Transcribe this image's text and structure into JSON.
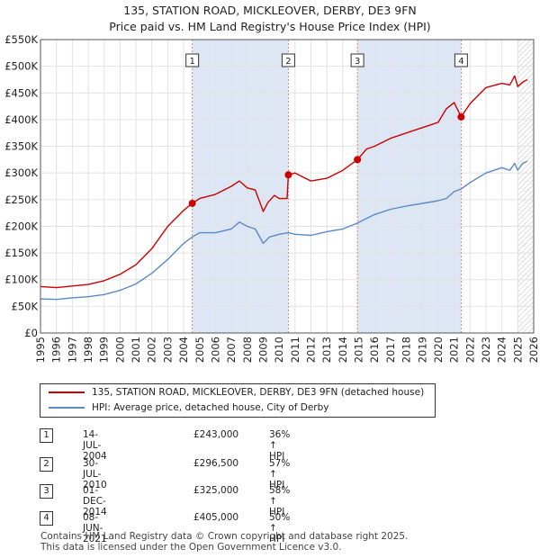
{
  "title_line1": "135, STATION ROAD, MICKLEOVER, DERBY, DE3 9FN",
  "title_line2": "Price paid vs. HM Land Registry's House Price Index (HPI)",
  "colors": {
    "property": "#cc0000",
    "hpi": "#5a8ac6",
    "shade": "#dde6f4",
    "marker_line": "#e58080"
  },
  "chart_data": {
    "type": "line",
    "xlim": [
      1995,
      2026
    ],
    "ylim": [
      0,
      550000
    ],
    "y_ticks": [
      0,
      50000,
      100000,
      150000,
      200000,
      250000,
      300000,
      350000,
      400000,
      450000,
      500000,
      550000
    ],
    "y_tick_labels": [
      "£0",
      "£50K",
      "£100K",
      "£150K",
      "£200K",
      "£250K",
      "£300K",
      "£350K",
      "£400K",
      "£450K",
      "£500K",
      "£550K"
    ],
    "x_ticks": [
      1995,
      1996,
      1997,
      1998,
      1999,
      2000,
      2001,
      2002,
      2003,
      2004,
      2005,
      2006,
      2007,
      2008,
      2009,
      2010,
      2011,
      2012,
      2013,
      2014,
      2015,
      2016,
      2017,
      2018,
      2019,
      2020,
      2021,
      2022,
      2023,
      2024,
      2025,
      2026
    ],
    "shaded_ranges": [
      [
        2004.54,
        2010.58
      ],
      [
        2014.92,
        2021.44
      ]
    ],
    "hatched_from": 2025.0,
    "series": [
      {
        "name": "135, STATION ROAD, MICKLEOVER, DERBY, DE3 9FN (detached house)",
        "color": "#cc0000",
        "x": [
          1995.0,
          1996.0,
          1997.0,
          1998.0,
          1999.0,
          2000.0,
          2001.0,
          2002.0,
          2003.0,
          2004.0,
          2004.54,
          2005.0,
          2006.0,
          2007.0,
          2007.5,
          2008.0,
          2008.5,
          2009.0,
          2009.3,
          2009.7,
          2010.0,
          2010.5,
          2010.58,
          2011.0,
          2012.0,
          2013.0,
          2014.0,
          2014.92,
          2015.5,
          2016.0,
          2017.0,
          2018.0,
          2019.0,
          2020.0,
          2020.5,
          2021.0,
          2021.44,
          2022.0,
          2023.0,
          2024.0,
          2024.5,
          2024.8,
          2025.0,
          2025.3,
          2025.6
        ],
        "y": [
          87000,
          85000,
          88000,
          91000,
          98000,
          110000,
          128000,
          158000,
          200000,
          230000,
          243000,
          252000,
          260000,
          275000,
          285000,
          272000,
          268000,
          228000,
          245000,
          258000,
          252000,
          252000,
          296500,
          300000,
          285000,
          290000,
          305000,
          325000,
          345000,
          350000,
          365000,
          375000,
          385000,
          395000,
          420000,
          432000,
          405000,
          430000,
          460000,
          468000,
          465000,
          482000,
          462000,
          470000,
          475000
        ]
      },
      {
        "name": "HPI: Average price, detached house, City of Derby",
        "color": "#5a8ac6",
        "x": [
          1995.0,
          1996.0,
          1997.0,
          1998.0,
          1999.0,
          2000.0,
          2001.0,
          2002.0,
          2003.0,
          2004.0,
          2004.54,
          2005.0,
          2006.0,
          2007.0,
          2007.5,
          2008.0,
          2008.5,
          2009.0,
          2009.4,
          2010.0,
          2010.58,
          2011.0,
          2012.0,
          2013.0,
          2014.0,
          2014.92,
          2015.5,
          2016.0,
          2017.0,
          2018.0,
          2019.0,
          2020.0,
          2020.5,
          2021.0,
          2021.44,
          2022.0,
          2023.0,
          2024.0,
          2024.5,
          2024.8,
          2025.0,
          2025.3,
          2025.6
        ],
        "y": [
          64000,
          63000,
          66000,
          68000,
          72000,
          80000,
          92000,
          112000,
          138000,
          168000,
          180000,
          188000,
          188000,
          195000,
          208000,
          200000,
          195000,
          168000,
          180000,
          185000,
          188000,
          185000,
          183000,
          190000,
          195000,
          206000,
          215000,
          222000,
          232000,
          238000,
          243000,
          248000,
          252000,
          265000,
          270000,
          282000,
          300000,
          310000,
          305000,
          318000,
          305000,
          318000,
          322000
        ]
      }
    ],
    "sale_markers": [
      {
        "label": "1",
        "x": 2004.54,
        "y": 243000
      },
      {
        "label": "2",
        "x": 2010.58,
        "y": 296500
      },
      {
        "label": "3",
        "x": 2014.92,
        "y": 325000
      },
      {
        "label": "4",
        "x": 2021.44,
        "y": 405000
      }
    ]
  },
  "legend": {
    "property_label": "135, STATION ROAD, MICKLEOVER, DERBY, DE3 9FN (detached house)",
    "hpi_label": "HPI: Average price, detached house, City of Derby"
  },
  "transactions": [
    {
      "num": "1",
      "date": "14-JUL-2004",
      "price": "£243,000",
      "hpi": "36% ↑ HPI"
    },
    {
      "num": "2",
      "date": "30-JUL-2010",
      "price": "£296,500",
      "hpi": "57% ↑ HPI"
    },
    {
      "num": "3",
      "date": "01-DEC-2014",
      "price": "£325,000",
      "hpi": "58% ↑ HPI"
    },
    {
      "num": "4",
      "date": "08-JUN-2021",
      "price": "£405,000",
      "hpi": "50% ↑ HPI"
    }
  ],
  "footer": {
    "line1": "Contains HM Land Registry data © Crown copyright and database right 2025.",
    "line2": "This data is licensed under the Open Government Licence v3.0."
  }
}
